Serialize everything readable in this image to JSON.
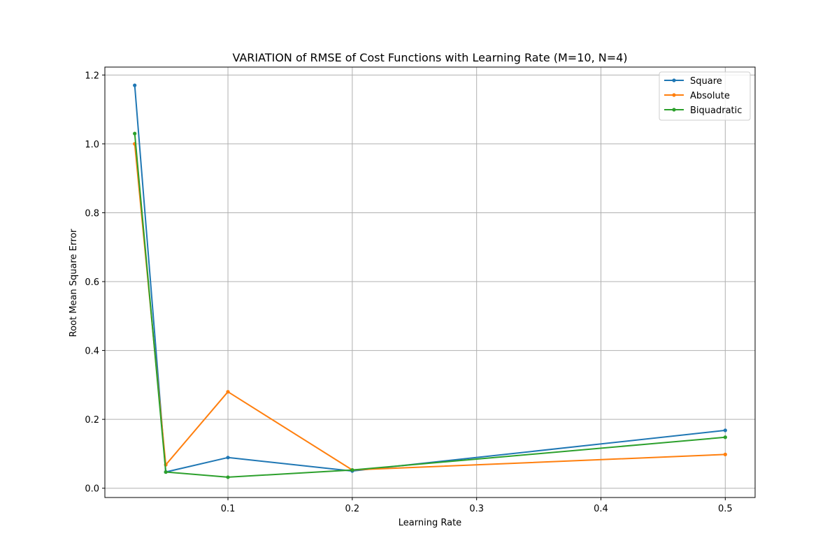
{
  "chart_data": {
    "type": "line",
    "title": "VARIATION of RMSE of Cost Functions with Learning Rate (M=10, N=4)",
    "xlabel": "Learning Rate",
    "ylabel": "Root Mean Square Error",
    "x": [
      0.025,
      0.05,
      0.1,
      0.2,
      0.5
    ],
    "xlim": [
      0.001,
      0.524
    ],
    "ylim": [
      -0.027,
      1.223
    ],
    "xticks": [
      0.1,
      0.2,
      0.3,
      0.4,
      0.5
    ],
    "xtick_labels": [
      "0.1",
      "0.2",
      "0.3",
      "0.4",
      "0.5"
    ],
    "yticks": [
      0.0,
      0.2,
      0.4,
      0.6,
      0.8,
      1.0,
      1.2
    ],
    "ytick_labels": [
      "0.0",
      "0.2",
      "0.4",
      "0.6",
      "0.8",
      "1.0",
      "1.2"
    ],
    "grid": true,
    "legend_position": "top-right",
    "series": [
      {
        "name": "Square",
        "color": "#1f77b4",
        "values": [
          1.17,
          0.047,
          0.089,
          0.05,
          0.168
        ]
      },
      {
        "name": "Absolute",
        "color": "#ff7f0e",
        "values": [
          1.0,
          0.068,
          0.28,
          0.053,
          0.098
        ]
      },
      {
        "name": "Biquadratic",
        "color": "#2ca02c",
        "values": [
          1.03,
          0.047,
          0.032,
          0.053,
          0.148
        ]
      }
    ]
  }
}
